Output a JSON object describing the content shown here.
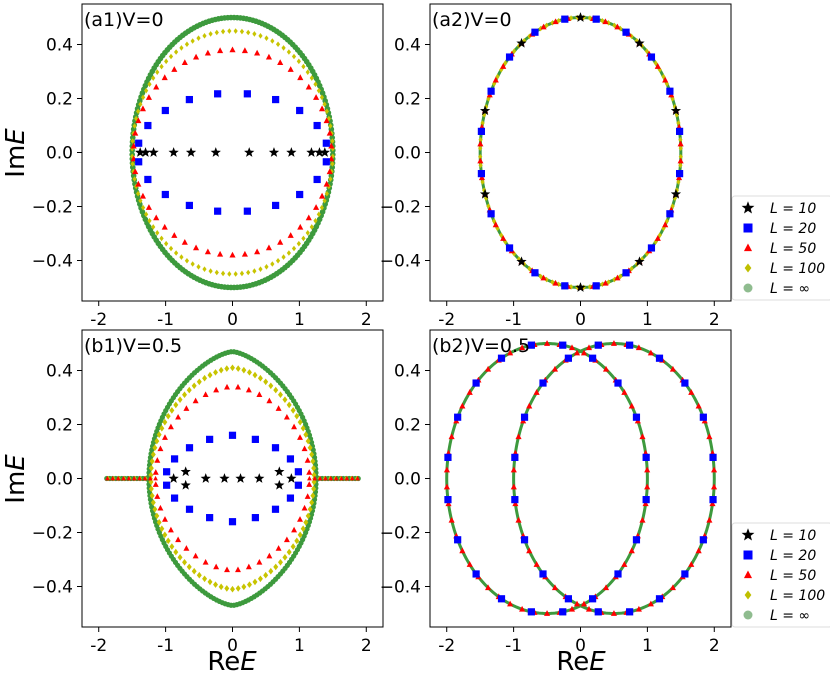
{
  "figure": {
    "xlabel_re": "Re",
    "xlabel_italic": "E",
    "ylabel_im": "Im",
    "ylabel_italic": "E"
  },
  "legend": {
    "entries": [
      {
        "label": "L = 10",
        "marker": "star",
        "color": "#000000"
      },
      {
        "label": "L = 20",
        "marker": "square",
        "color": "#0000ff"
      },
      {
        "label": "L = 50",
        "marker": "triangle",
        "color": "#ff0000"
      },
      {
        "label": "L = 100",
        "marker": "diamond",
        "color": "#bfbf00"
      },
      {
        "label": "L = ∞",
        "marker": "dot",
        "color": "#8fbc8f"
      }
    ]
  },
  "chart_data": [
    {
      "panel": "a1",
      "title": "(a1)V=0",
      "type": "scatter",
      "xlim": [
        -2.25,
        2.25
      ],
      "ylim": [
        -0.55,
        0.55
      ],
      "xticks": [
        -2,
        -1,
        0,
        1,
        2
      ],
      "xtick_labels": [
        "-2",
        "-1",
        "0",
        "1",
        "2"
      ],
      "yticks": [
        -0.4,
        -0.2,
        0.0,
        0.2,
        0.4
      ],
      "ytick_labels": [
        "-0.4",
        "-0.2",
        "0.0",
        "0.2",
        "0.4"
      ],
      "show_xticklabels": true,
      "show_ylabel": true,
      "show_xlabel": false,
      "series": [
        {
          "name": "L = ∞",
          "shape": "ellipse",
          "a": 1.5,
          "b": 0.5,
          "n": 200,
          "color": "#3d9a3d",
          "marker": "dot"
        },
        {
          "name": "L = 100",
          "shape": "ellipse",
          "a": 1.5,
          "b": 0.45,
          "n": 100,
          "color": "#c8c400",
          "marker": "diamond"
        },
        {
          "name": "L = 50",
          "shape": "ellipse",
          "a": 1.48,
          "b": 0.38,
          "n": 50,
          "color": "#ff0000",
          "marker": "triangle"
        },
        {
          "name": "L = 20",
          "shape": "ellipse",
          "a": 1.42,
          "b": 0.22,
          "n": 20,
          "color": "#0000ff",
          "marker": "square"
        },
        {
          "name": "L = 10",
          "shape": "points",
          "color": "#000000",
          "marker": "star",
          "x": [
            -1.38,
            -1.3,
            -1.18,
            -0.88,
            -0.62,
            -0.25,
            0.25,
            0.62,
            0.88,
            1.18,
            1.3,
            1.38
          ],
          "y": [
            0,
            0,
            0,
            0,
            0,
            0,
            0,
            0,
            0,
            0,
            0,
            0
          ]
        }
      ]
    },
    {
      "panel": "a2",
      "title": "(a2)V=0",
      "type": "scatter",
      "xlim": [
        -2.25,
        2.25
      ],
      "ylim": [
        -0.55,
        0.55
      ],
      "xticks": [
        -2,
        -1,
        0,
        1,
        2
      ],
      "xtick_labels": [
        "-2",
        "-1",
        "0",
        "1",
        "2"
      ],
      "yticks": [
        -0.4,
        -0.2,
        0.0,
        0.2,
        0.4
      ],
      "ytick_labels": [
        "-0.4",
        "-0.2",
        "0.0",
        "0.2",
        "0.4"
      ],
      "show_xticklabels": true,
      "show_ylabel": false,
      "show_xlabel": false,
      "series": [
        {
          "name": "L = ∞",
          "shape": "ellipse",
          "a": 1.5,
          "b": 0.5,
          "n": 240,
          "color": "#3d9a3d",
          "marker": "line",
          "cx": 0
        },
        {
          "name": "L = 100",
          "shape": "ellipse",
          "a": 1.5,
          "b": 0.5,
          "n": 100,
          "color": "#c8c400",
          "marker": "diamond",
          "cx": 0
        },
        {
          "name": "L = 50",
          "shape": "ellipse",
          "a": 1.5,
          "b": 0.5,
          "n": 50,
          "color": "#ff0000",
          "marker": "triangle",
          "cx": 0
        },
        {
          "name": "L = 20",
          "shape": "ellipse",
          "a": 1.5,
          "b": 0.5,
          "n": 20,
          "color": "#0000ff",
          "marker": "square",
          "cx": 0
        },
        {
          "name": "L = 10",
          "shape": "ellipse",
          "a": 1.5,
          "b": 0.5,
          "n": 10,
          "color": "#000000",
          "marker": "star",
          "cx": 0
        }
      ]
    },
    {
      "panel": "b1",
      "title": "(b1)V=0.5",
      "type": "scatter",
      "xlim": [
        -2.25,
        2.25
      ],
      "ylim": [
        -0.55,
        0.55
      ],
      "xticks": [
        -2,
        -1,
        0,
        1,
        2
      ],
      "xtick_labels": [
        "-2",
        "-1",
        "0",
        "1",
        "2"
      ],
      "yticks": [
        -0.4,
        -0.2,
        0.0,
        0.2,
        0.4
      ],
      "ytick_labels": [
        "-0.4",
        "-0.2",
        "0.0",
        "0.2",
        "0.4"
      ],
      "show_xticklabels": true,
      "show_ylabel": true,
      "show_xlabel": true,
      "series": [
        {
          "name": "L = ∞",
          "shape": "lens",
          "xmax": 1.25,
          "b": 0.47,
          "p": 1.5,
          "tail": 1.92,
          "n": 180,
          "color": "#3d9a3d",
          "marker": "dot"
        },
        {
          "name": "L = 100",
          "shape": "lens",
          "xmax": 1.22,
          "b": 0.41,
          "p": 1.6,
          "tail": 1.92,
          "n": 90,
          "color": "#c8c400",
          "marker": "diamond"
        },
        {
          "name": "L = 50",
          "shape": "lens",
          "xmax": 1.15,
          "b": 0.34,
          "p": 1.7,
          "tail": 1.92,
          "n": 44,
          "color": "#ff0000",
          "marker": "triangle"
        },
        {
          "name": "L = 20",
          "shape": "lens",
          "xmax": 1.0,
          "b": 0.16,
          "p": 1.6,
          "tail": 0,
          "n": 18,
          "color": "#0000ff",
          "marker": "square"
        },
        {
          "name": "L = 10",
          "shape": "points",
          "color": "#000000",
          "marker": "star",
          "x": [
            -0.88,
            -0.7,
            -0.7,
            -0.4,
            -0.12,
            0.12,
            0.4,
            0.7,
            0.7,
            0.88
          ],
          "y": [
            0,
            0.025,
            -0.025,
            0,
            0,
            0,
            0,
            0.025,
            -0.025,
            0
          ]
        }
      ]
    },
    {
      "panel": "b2",
      "title": "(b2)V=0.5",
      "type": "scatter",
      "xlim": [
        -2.25,
        2.25
      ],
      "ylim": [
        -0.55,
        0.55
      ],
      "xticks": [
        -2,
        -1,
        0,
        1,
        2
      ],
      "xtick_labels": [
        "-2",
        "-1",
        "0",
        "1",
        "2"
      ],
      "yticks": [
        -0.4,
        -0.2,
        0.0,
        0.2,
        0.4
      ],
      "ytick_labels": [
        "-0.4",
        "-0.2",
        "0.0",
        "0.2",
        "0.4"
      ],
      "show_xticklabels": true,
      "show_ylabel": false,
      "show_xlabel": true,
      "series": [
        {
          "name": "L = ∞ (left)",
          "shape": "ellipse",
          "a": 1.5,
          "b": 0.5,
          "n": 240,
          "color": "#3d9a3d",
          "marker": "line",
          "cx": -0.5
        },
        {
          "name": "L = ∞ (right)",
          "shape": "ellipse",
          "a": 1.5,
          "b": 0.5,
          "n": 240,
          "color": "#3d9a3d",
          "marker": "line",
          "cx": 0.5
        },
        {
          "name": "L = 50 (left)",
          "shape": "ellipse",
          "a": 1.5,
          "b": 0.5,
          "n": 50,
          "color": "#ff0000",
          "marker": "triangle",
          "cx": -0.5
        },
        {
          "name": "L = 50 (right)",
          "shape": "ellipse",
          "a": 1.5,
          "b": 0.5,
          "n": 50,
          "color": "#ff0000",
          "marker": "triangle",
          "cx": 0.5
        },
        {
          "name": "L = 20 (left)",
          "shape": "ellipse",
          "a": 1.5,
          "b": 0.5,
          "n": 20,
          "color": "#0000ff",
          "marker": "square",
          "cx": -0.5
        },
        {
          "name": "L = 20 (right)",
          "shape": "ellipse",
          "a": 1.5,
          "b": 0.5,
          "n": 20,
          "color": "#0000ff",
          "marker": "square",
          "cx": 0.5
        }
      ]
    }
  ]
}
